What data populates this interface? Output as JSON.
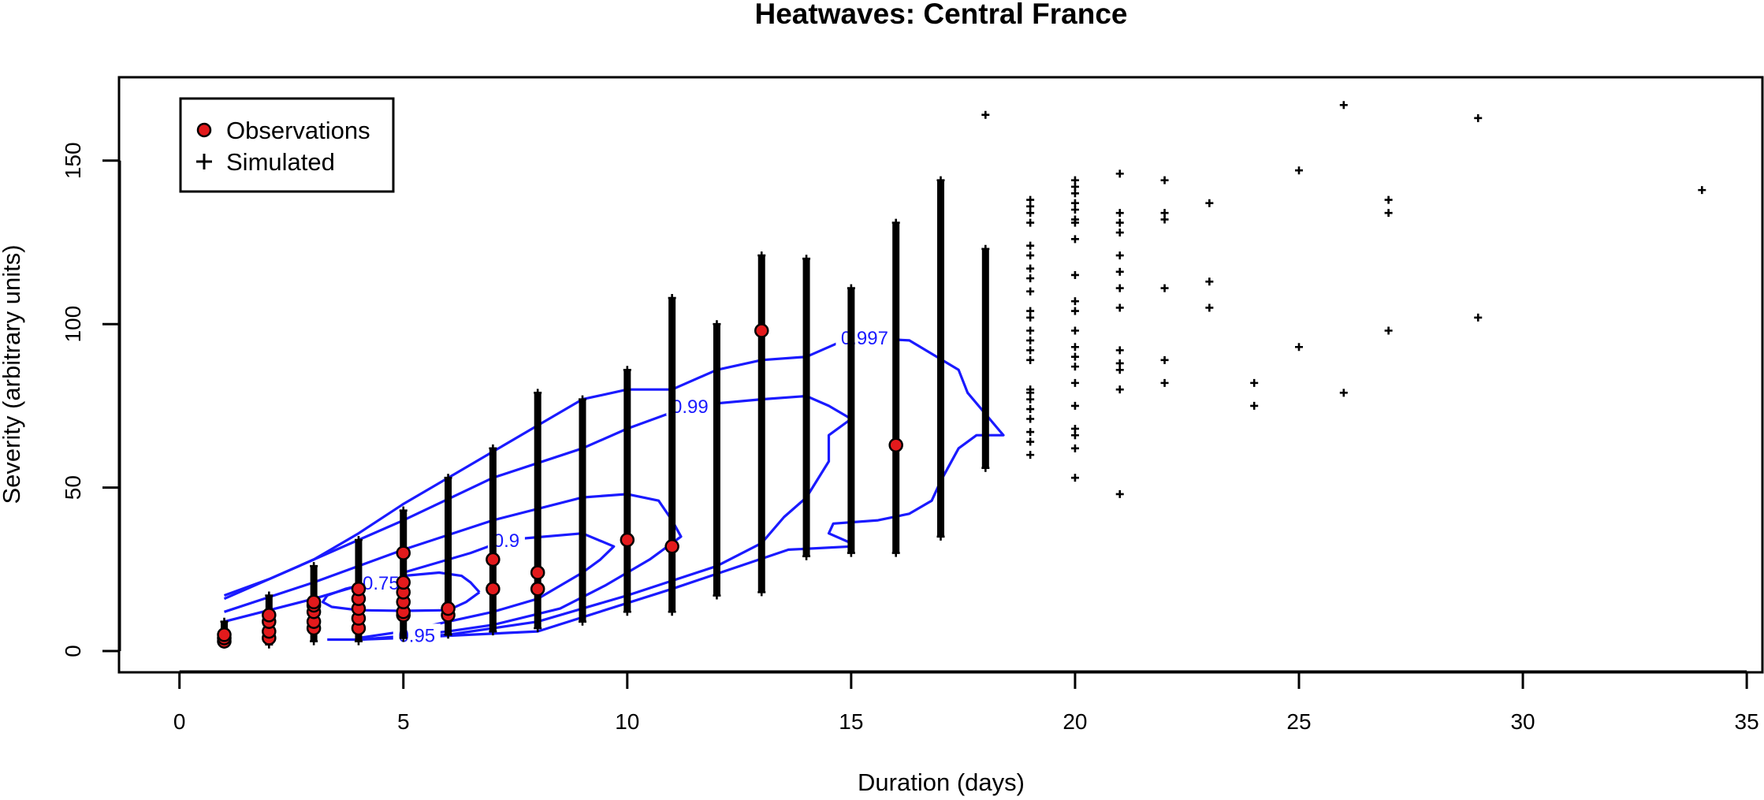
{
  "chart_data": {
    "type": "scatter",
    "title": "Heatwaves: Central France",
    "xlabel": "Duration (days)",
    "ylabel": "Severity (arbitrary units)",
    "xlim": [
      -1.35,
      35.35
    ],
    "ylim": [
      -6.5,
      175.5
    ],
    "xticks": [
      0,
      5,
      10,
      15,
      20,
      25,
      30,
      35
    ],
    "yticks": [
      0,
      50,
      100,
      150
    ],
    "legend": {
      "position": "top-left",
      "entries": [
        {
          "label": "Observations",
          "marker": "filled-circle",
          "color": "#e31a1c"
        },
        {
          "label": "Simulated",
          "marker": "plus",
          "color": "#000000"
        }
      ]
    },
    "colors": {
      "observations": "#e31a1c",
      "simulated": "#000000",
      "contours": "#1a1aff"
    },
    "series": [
      {
        "name": "Observations",
        "points": [
          [
            1,
            3
          ],
          [
            1,
            4
          ],
          [
            1,
            5
          ],
          [
            2,
            4
          ],
          [
            2,
            6
          ],
          [
            2,
            9
          ],
          [
            2,
            11
          ],
          [
            3,
            7
          ],
          [
            3,
            9
          ],
          [
            3,
            12
          ],
          [
            3,
            14
          ],
          [
            3,
            15
          ],
          [
            4,
            7
          ],
          [
            4,
            10
          ],
          [
            4,
            13
          ],
          [
            4,
            16
          ],
          [
            4,
            19
          ],
          [
            5,
            11
          ],
          [
            5,
            12
          ],
          [
            5,
            15
          ],
          [
            5,
            18
          ],
          [
            5,
            21
          ],
          [
            5,
            30
          ],
          [
            6,
            11
          ],
          [
            6,
            13
          ],
          [
            7,
            19
          ],
          [
            7,
            28
          ],
          [
            8,
            19
          ],
          [
            8,
            24
          ],
          [
            10,
            34
          ],
          [
            11,
            32
          ],
          [
            13,
            98
          ],
          [
            16,
            63
          ]
        ]
      },
      {
        "name": "Simulated",
        "columns": [
          {
            "x": 1,
            "min": 2,
            "max": 9
          },
          {
            "x": 2,
            "min": 2,
            "max": 17
          },
          {
            "x": 3,
            "min": 3,
            "max": 26
          },
          {
            "x": 4,
            "min": 3,
            "max": 34
          },
          {
            "x": 5,
            "min": 4,
            "max": 43
          },
          {
            "x": 6,
            "min": 5,
            "max": 53
          },
          {
            "x": 7,
            "min": 6,
            "max": 62
          },
          {
            "x": 8,
            "min": 7,
            "max": 79
          },
          {
            "x": 9,
            "min": 9,
            "max": 77
          },
          {
            "x": 10,
            "min": 12,
            "max": 86
          },
          {
            "x": 11,
            "min": 12,
            "max": 108
          },
          {
            "x": 12,
            "min": 17,
            "max": 100
          },
          {
            "x": 13,
            "min": 18,
            "max": 121
          },
          {
            "x": 14,
            "min": 29,
            "max": 120
          },
          {
            "x": 15,
            "min": 30,
            "max": 111
          },
          {
            "x": 16,
            "min": 30,
            "max": 131
          },
          {
            "x": 17,
            "min": 35,
            "max": 144
          },
          {
            "x": 18,
            "min": 56,
            "max": 123
          }
        ],
        "points": [
          [
            18,
            164
          ],
          [
            19,
            60
          ],
          [
            19,
            64
          ],
          [
            19,
            67
          ],
          [
            19,
            71
          ],
          [
            19,
            74
          ],
          [
            19,
            77
          ],
          [
            19,
            79
          ],
          [
            19,
            80
          ],
          [
            19,
            89
          ],
          [
            19,
            92
          ],
          [
            19,
            95
          ],
          [
            19,
            98
          ],
          [
            19,
            102
          ],
          [
            19,
            104
          ],
          [
            19,
            110
          ],
          [
            19,
            114
          ],
          [
            19,
            117
          ],
          [
            19,
            121
          ],
          [
            19,
            124
          ],
          [
            19,
            131
          ],
          [
            19,
            134
          ],
          [
            19,
            136
          ],
          [
            19,
            138
          ],
          [
            20,
            53
          ],
          [
            20,
            62
          ],
          [
            20,
            66
          ],
          [
            20,
            68
          ],
          [
            20,
            75
          ],
          [
            20,
            82
          ],
          [
            20,
            87
          ],
          [
            20,
            90
          ],
          [
            20,
            93
          ],
          [
            20,
            98
          ],
          [
            20,
            104
          ],
          [
            20,
            107
          ],
          [
            20,
            115
          ],
          [
            20,
            126
          ],
          [
            20,
            131
          ],
          [
            20,
            132
          ],
          [
            20,
            135
          ],
          [
            20,
            137
          ],
          [
            20,
            140
          ],
          [
            20,
            142
          ],
          [
            20,
            144
          ],
          [
            21,
            48
          ],
          [
            21,
            80
          ],
          [
            21,
            86
          ],
          [
            21,
            88
          ],
          [
            21,
            92
          ],
          [
            21,
            105
          ],
          [
            21,
            111
          ],
          [
            21,
            116
          ],
          [
            21,
            121
          ],
          [
            21,
            128
          ],
          [
            21,
            131
          ],
          [
            21,
            134
          ],
          [
            21,
            146
          ],
          [
            22,
            82
          ],
          [
            22,
            89
          ],
          [
            22,
            111
          ],
          [
            22,
            132
          ],
          [
            22,
            134
          ],
          [
            22,
            144
          ],
          [
            23,
            105
          ],
          [
            23,
            113
          ],
          [
            23,
            137
          ],
          [
            24,
            75
          ],
          [
            24,
            82
          ],
          [
            25,
            93
          ],
          [
            25,
            147
          ],
          [
            26,
            79
          ],
          [
            26,
            167
          ],
          [
            27,
            98
          ],
          [
            27,
            134
          ],
          [
            27,
            138
          ],
          [
            29,
            102
          ],
          [
            29,
            163
          ],
          [
            34,
            141
          ]
        ]
      }
    ],
    "contours": [
      {
        "level": "0.75",
        "label": "0.75",
        "label_at": [
          4.5,
          21
        ],
        "path": [
          [
            6.7,
            18
          ],
          [
            6.5,
            21
          ],
          [
            6.3,
            23
          ],
          [
            5.8,
            24
          ],
          [
            5,
            23
          ],
          [
            4.3,
            21
          ],
          [
            3.7,
            19
          ],
          [
            3.3,
            17
          ],
          [
            3.2,
            15
          ],
          [
            3.4,
            13.5
          ],
          [
            4,
            12.5
          ],
          [
            5,
            12.3
          ],
          [
            6,
            12.5
          ],
          [
            6.4,
            15
          ],
          [
            6.7,
            18
          ]
        ]
      },
      {
        "level": "0.9",
        "label": "0.9",
        "label_at": [
          7.3,
          34
        ],
        "path": [
          [
            1,
            9
          ],
          [
            3,
            16
          ],
          [
            5,
            24
          ],
          [
            6.5,
            30
          ],
          [
            7.3,
            34
          ],
          [
            9,
            36
          ],
          [
            9.7,
            32
          ],
          [
            9.4,
            28
          ],
          [
            9,
            24
          ],
          [
            8,
            16
          ],
          [
            7,
            12
          ],
          [
            6,
            9
          ],
          [
            5,
            6
          ],
          [
            4,
            4
          ]
        ]
      },
      {
        "level": "0.95",
        "label": "0.95",
        "label_at": [
          5.3,
          5
        ],
        "path": [
          [
            1,
            12
          ],
          [
            3,
            21
          ],
          [
            5,
            31
          ],
          [
            7,
            40
          ],
          [
            9,
            47
          ],
          [
            10,
            48
          ],
          [
            10.7,
            46
          ],
          [
            11,
            40
          ],
          [
            11.2,
            35
          ],
          [
            10.5,
            28
          ],
          [
            9.5,
            20
          ],
          [
            8.5,
            13
          ],
          [
            7,
            8
          ],
          [
            6,
            6
          ],
          [
            5.3,
            5
          ],
          [
            4.5,
            4
          ],
          [
            4,
            3.5
          ]
        ]
      },
      {
        "level": "0.99",
        "label": "0.99",
        "label_at": [
          11.4,
          75
        ],
        "path": [
          [
            1,
            16
          ],
          [
            3,
            28
          ],
          [
            5,
            40
          ],
          [
            7,
            53
          ],
          [
            9,
            62
          ],
          [
            10,
            68
          ],
          [
            11.4,
            75
          ],
          [
            13,
            77
          ],
          [
            14,
            78
          ],
          [
            14.5,
            75
          ],
          [
            15,
            71
          ],
          [
            14.5,
            66
          ],
          [
            14.5,
            58
          ],
          [
            14,
            47
          ],
          [
            13.5,
            41
          ],
          [
            13,
            33
          ],
          [
            12,
            26
          ],
          [
            10,
            17
          ],
          [
            8,
            9
          ],
          [
            6,
            5
          ],
          [
            4,
            3.5
          ],
          [
            3.3,
            3.5
          ]
        ]
      },
      {
        "level": "0.997",
        "label": "0.997",
        "label_at": [
          15.3,
          96
        ],
        "path": [
          [
            1,
            17
          ],
          [
            2,
            22
          ],
          [
            3,
            28
          ],
          [
            4,
            36
          ],
          [
            5,
            45
          ],
          [
            6,
            53
          ],
          [
            7,
            61
          ],
          [
            8,
            69
          ],
          [
            9,
            77
          ],
          [
            10,
            80
          ],
          [
            11,
            80
          ],
          [
            12,
            86
          ],
          [
            13,
            89
          ],
          [
            14,
            90
          ],
          [
            15,
            96
          ],
          [
            16.3,
            95
          ],
          [
            17.4,
            86
          ],
          [
            17.6,
            79
          ],
          [
            18.4,
            66
          ],
          [
            17.8,
            66
          ],
          [
            17.4,
            62
          ],
          [
            17,
            52
          ],
          [
            16.8,
            46
          ],
          [
            16.3,
            42
          ],
          [
            15.6,
            40
          ],
          [
            14.6,
            39
          ],
          [
            14.5,
            36
          ],
          [
            15,
            33
          ],
          [
            15,
            32
          ],
          [
            13.6,
            31
          ],
          [
            11,
            19
          ],
          [
            8,
            6
          ],
          [
            5,
            4
          ],
          [
            4,
            3.5
          ]
        ]
      }
    ]
  }
}
